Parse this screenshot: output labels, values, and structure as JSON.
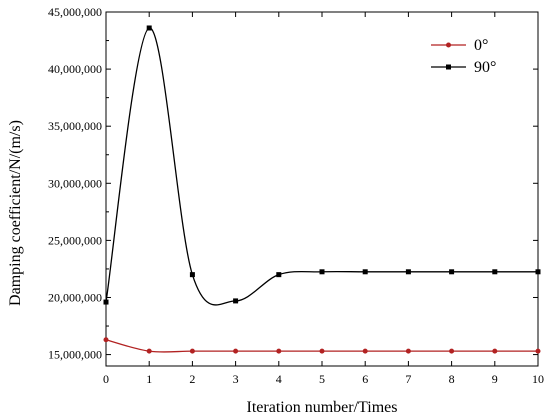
{
  "chart_data": {
    "type": "line",
    "title": "",
    "xlabel": "Iteration number/Times",
    "ylabel": "Damping coefficient/N/(m/s)",
    "x": [
      0,
      1,
      2,
      3,
      4,
      5,
      6,
      7,
      8,
      9,
      10
    ],
    "xlim": [
      0,
      10
    ],
    "ylim": [
      14000000,
      45000000
    ],
    "x_ticks": [
      "0",
      "1",
      "2",
      "3",
      "4",
      "5",
      "6",
      "7",
      "8",
      "9",
      "10"
    ],
    "y_ticks": [
      {
        "value": 15000000,
        "label": "15,000,000"
      },
      {
        "value": 20000000,
        "label": "20,000,000"
      },
      {
        "value": 25000000,
        "label": "25,000,000"
      },
      {
        "value": 30000000,
        "label": "30,000,000"
      },
      {
        "value": 35000000,
        "label": "35,000,000"
      },
      {
        "value": 40000000,
        "label": "40,000,000"
      },
      {
        "value": 45000000,
        "label": "45,000,000"
      }
    ],
    "grid": false,
    "legend_position": "top-right",
    "smooth": true,
    "series": [
      {
        "name": "0°",
        "color": "#b22222",
        "marker": "circle",
        "values": [
          16300000,
          15300000,
          15300000,
          15300000,
          15300000,
          15300000,
          15300000,
          15300000,
          15300000,
          15300000,
          15300000
        ]
      },
      {
        "name": "90°",
        "color": "#000000",
        "marker": "square",
        "values": [
          19600000,
          43600000,
          22000000,
          19700000,
          22000000,
          22250000,
          22250000,
          22250000,
          22250000,
          22250000,
          22250000
        ]
      }
    ]
  }
}
